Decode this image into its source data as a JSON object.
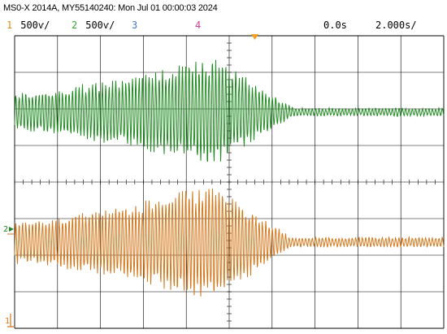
{
  "header": {
    "title": "MS0-X 2014A, MY55140240: Mon Jul 01 00:00:03 2024"
  },
  "channels": [
    {
      "num": "1",
      "scale": "500ѵ/",
      "color": "#e08a1e"
    },
    {
      "num": "2",
      "scale": "500ѵ/",
      "color": "#3aa335"
    },
    {
      "num": "3",
      "scale": "",
      "color": "#4a78c8"
    },
    {
      "num": "4",
      "scale": "",
      "color": "#d0409a"
    }
  ],
  "timebase": {
    "delay": "0.0s",
    "scale": "2.000s/"
  },
  "markers": {
    "ch2_label": "2",
    "ch1_label": "1"
  },
  "colors": {
    "ch1": "#d4761a",
    "ch2": "#1f8a1f",
    "grid": "#000000",
    "trigger": "#f5a020"
  }
}
